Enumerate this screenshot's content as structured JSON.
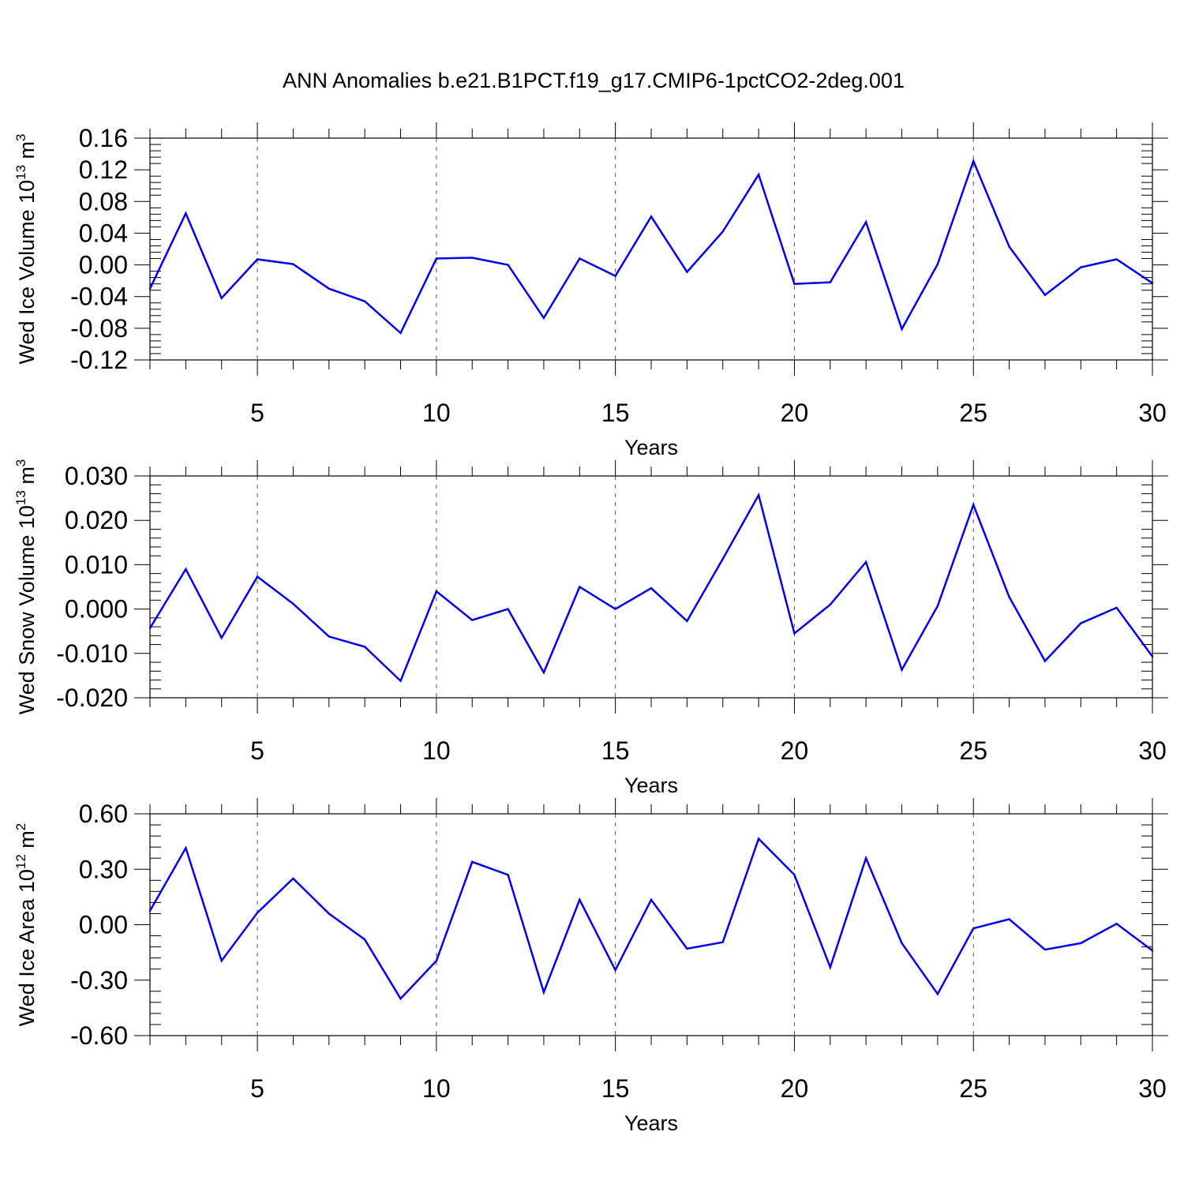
{
  "title": "ANN Anomalies b.e21.B1PCT.f19_g17.CMIP6-1pctCO2-2deg.001",
  "colors": {
    "series": "#0000ee",
    "axes": "#000000",
    "grid": "#555555"
  },
  "chart_data": [
    {
      "type": "line",
      "ylabel": {
        "text": "Wed Ice Volume 10",
        "exp": "13",
        "unit": " m",
        "unit_exp": "3"
      },
      "xlabel": "Years",
      "xlim": [
        2,
        30
      ],
      "ylim": [
        -0.12,
        0.16
      ],
      "xticks": [
        5,
        10,
        15,
        20,
        25,
        30
      ],
      "yticks": [
        -0.12,
        -0.08,
        -0.04,
        0.0,
        0.04,
        0.08,
        0.12,
        0.16
      ],
      "ytick_labels": [
        "-0.12",
        "-0.08",
        "-0.04",
        "0.00",
        "0.04",
        "0.08",
        "0.12",
        "0.16"
      ],
      "grid": "vertical dashed at major x ticks",
      "x": [
        2,
        3,
        4,
        5,
        6,
        7,
        8,
        9,
        10,
        11,
        12,
        13,
        14,
        15,
        16,
        17,
        18,
        19,
        20,
        21,
        22,
        23,
        24,
        25,
        26,
        27,
        28,
        29,
        30
      ],
      "values": [
        -0.03,
        0.065,
        -0.042,
        0.007,
        0.001,
        -0.03,
        -0.046,
        -0.086,
        0.008,
        0.009,
        0.0,
        -0.067,
        0.008,
        -0.014,
        0.061,
        -0.009,
        0.042,
        0.114,
        -0.024,
        -0.022,
        0.054,
        -0.081,
        0.001,
        0.131,
        0.023,
        -0.038,
        -0.003,
        0.007,
        -0.023
      ]
    },
    {
      "type": "line",
      "ylabel": {
        "text": "Wed Snow Volume 10",
        "exp": "13",
        "unit": " m",
        "unit_exp": "3"
      },
      "xlabel": "Years",
      "xlim": [
        2,
        30
      ],
      "ylim": [
        -0.02,
        0.03
      ],
      "xticks": [
        5,
        10,
        15,
        20,
        25,
        30
      ],
      "yticks": [
        -0.02,
        -0.01,
        0.0,
        0.01,
        0.02,
        0.03
      ],
      "ytick_labels": [
        "-0.020",
        "-0.010",
        "0.000",
        "0.010",
        "0.020",
        "0.030"
      ],
      "grid": "vertical dashed at major x ticks",
      "x": [
        2,
        3,
        4,
        5,
        6,
        7,
        8,
        9,
        10,
        11,
        12,
        13,
        14,
        15,
        16,
        17,
        18,
        19,
        20,
        21,
        22,
        23,
        24,
        25,
        26,
        27,
        28,
        29,
        30
      ],
      "values": [
        -0.0043,
        0.009,
        -0.0065,
        0.0073,
        0.0012,
        -0.0062,
        -0.0085,
        -0.0162,
        0.004,
        -0.0025,
        0.0,
        -0.0143,
        0.005,
        0.0,
        0.0047,
        -0.0027,
        0.0113,
        0.0257,
        -0.0055,
        0.001,
        0.0106,
        -0.0137,
        0.0007,
        0.0235,
        0.0027,
        -0.0117,
        -0.0032,
        0.0003,
        -0.0107
      ]
    },
    {
      "type": "line",
      "ylabel": {
        "text": "Wed Ice Area 10",
        "exp": "12",
        "unit": " m",
        "unit_exp": "2"
      },
      "xlabel": "Years",
      "xlim": [
        2,
        30
      ],
      "ylim": [
        -0.6,
        0.6
      ],
      "xticks": [
        5,
        10,
        15,
        20,
        25,
        30
      ],
      "yticks": [
        -0.6,
        -0.3,
        0.0,
        0.3,
        0.6
      ],
      "ytick_labels": [
        "-0.60",
        "-0.30",
        "0.00",
        "0.30",
        "0.60"
      ],
      "grid": "vertical dashed at major x ticks",
      "x": [
        2,
        3,
        4,
        5,
        6,
        7,
        8,
        9,
        10,
        11,
        12,
        13,
        14,
        15,
        16,
        17,
        18,
        19,
        20,
        21,
        22,
        23,
        24,
        25,
        26,
        27,
        28,
        29,
        30
      ],
      "values": [
        0.075,
        0.415,
        -0.195,
        0.065,
        0.25,
        0.06,
        -0.08,
        -0.4,
        -0.195,
        0.34,
        0.27,
        -0.365,
        0.135,
        -0.245,
        0.135,
        -0.13,
        -0.095,
        0.465,
        0.27,
        -0.23,
        0.36,
        -0.1,
        -0.375,
        -0.02,
        0.03,
        -0.135,
        -0.1,
        0.005,
        -0.14
      ]
    }
  ]
}
